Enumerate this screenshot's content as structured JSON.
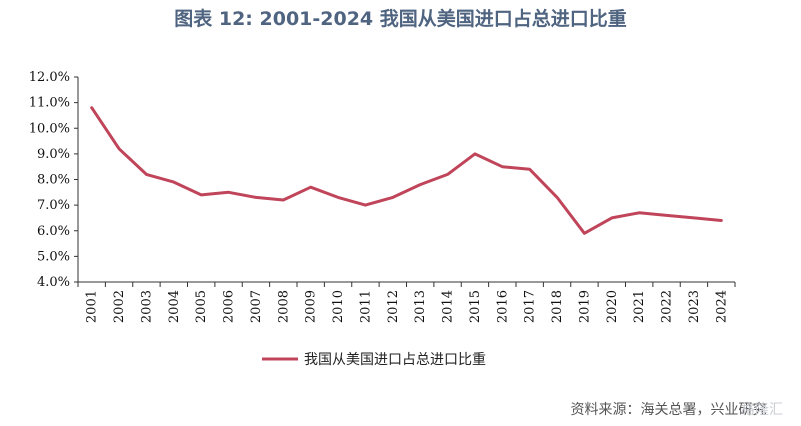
{
  "title": "图表 12: 2001-2024 我国从美国进口占总进口比重",
  "source": "资料来源：海关总署，兴业研究",
  "watermark": "格隆汇",
  "chart_data": {
    "type": "line",
    "title": "图表 12: 2001-2024 我国从美国进口占总进口比重",
    "xlabel": "",
    "ylabel": "",
    "ylim": [
      4.0,
      12.0
    ],
    "yticks": [
      "4.0%",
      "5.0%",
      "6.0%",
      "7.0%",
      "8.0%",
      "9.0%",
      "10.0%",
      "11.0%",
      "12.0%"
    ],
    "categories": [
      "2001",
      "2002",
      "2003",
      "2004",
      "2005",
      "2006",
      "2007",
      "2008",
      "2009",
      "2010",
      "2011",
      "2012",
      "2013",
      "2014",
      "2015",
      "2016",
      "2017",
      "2018",
      "2019",
      "2020",
      "2021",
      "2022",
      "2023",
      "2024"
    ],
    "series": [
      {
        "name": "我国从美国进口占总进口比重",
        "color": "#c0455a",
        "values": [
          10.8,
          9.2,
          8.2,
          7.9,
          7.4,
          7.5,
          7.3,
          7.2,
          7.7,
          7.3,
          7.0,
          7.3,
          7.8,
          8.2,
          9.0,
          8.5,
          8.4,
          7.3,
          5.9,
          6.5,
          6.7,
          6.6,
          6.5,
          6.4
        ]
      }
    ],
    "grid": false,
    "legend_position": "bottom-center"
  }
}
